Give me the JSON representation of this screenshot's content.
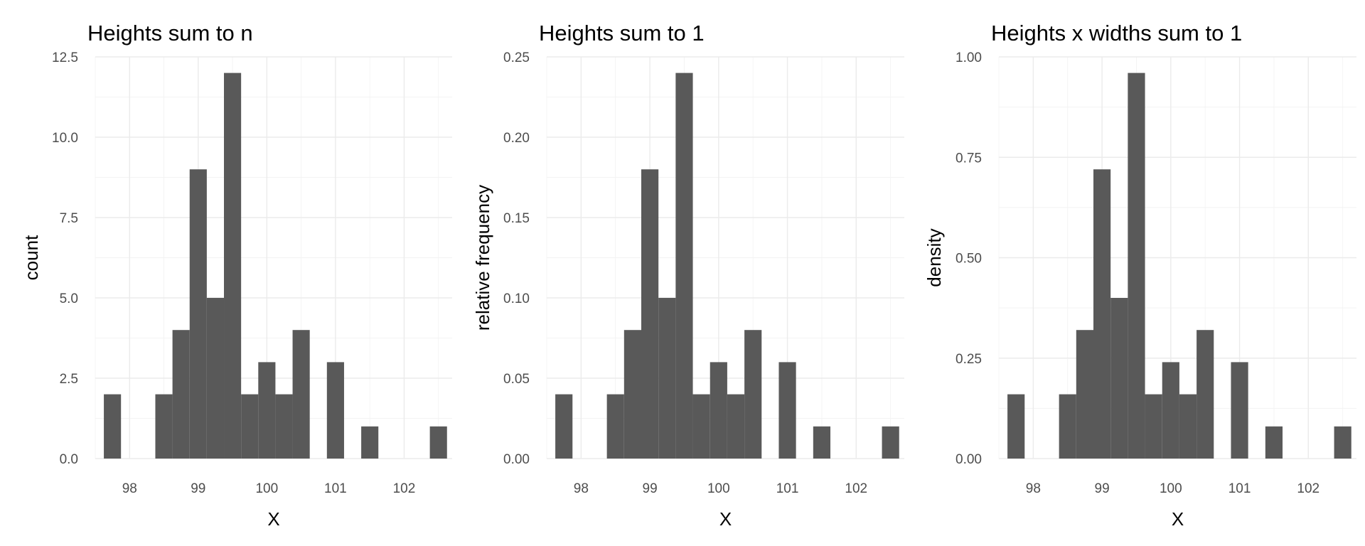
{
  "chart_data": [
    {
      "type": "bar",
      "title": "Heights sum to n",
      "xlabel": "X",
      "ylabel": "count",
      "xlim": [
        97.5,
        102.7
      ],
      "ylim": [
        0,
        12.5
      ],
      "xticks": [
        98,
        99,
        100,
        101,
        102
      ],
      "yticks": [
        0,
        2.5,
        5,
        7.5,
        10,
        12.5
      ],
      "ytick_labels": [
        "0.0",
        "2.5",
        "5.0",
        "7.5",
        "10.0",
        "12.5"
      ],
      "bin_width": 0.25,
      "bins": [
        97.75,
        98.0,
        98.25,
        98.5,
        98.75,
        99.0,
        99.25,
        99.5,
        99.75,
        100.0,
        100.25,
        100.5,
        100.75,
        101.0,
        101.25,
        101.5,
        101.75,
        102.0,
        102.25,
        102.5
      ],
      "values": [
        2,
        0,
        0,
        2,
        4,
        9,
        5,
        12,
        2,
        3,
        2,
        4,
        0,
        3,
        0,
        1,
        0,
        0,
        0,
        1
      ],
      "grid": true
    },
    {
      "type": "bar",
      "title": "Heights sum to 1",
      "xlabel": "X",
      "ylabel": "relative frequency",
      "xlim": [
        97.5,
        102.7
      ],
      "ylim": [
        0,
        0.25
      ],
      "xticks": [
        98,
        99,
        100,
        101,
        102
      ],
      "yticks": [
        0,
        0.05,
        0.1,
        0.15,
        0.2,
        0.25
      ],
      "ytick_labels": [
        "0.00",
        "0.05",
        "0.10",
        "0.15",
        "0.20",
        "0.25"
      ],
      "bin_width": 0.25,
      "bins": [
        97.75,
        98.0,
        98.25,
        98.5,
        98.75,
        99.0,
        99.25,
        99.5,
        99.75,
        100.0,
        100.25,
        100.5,
        100.75,
        101.0,
        101.25,
        101.5,
        101.75,
        102.0,
        102.25,
        102.5
      ],
      "values": [
        0.04,
        0,
        0,
        0.04,
        0.08,
        0.18,
        0.1,
        0.24,
        0.04,
        0.06,
        0.04,
        0.08,
        0,
        0.06,
        0,
        0.02,
        0,
        0,
        0,
        0.02
      ],
      "grid": true
    },
    {
      "type": "bar",
      "title": "Heights x widths sum to 1",
      "xlabel": "X",
      "ylabel": "density",
      "xlim": [
        97.5,
        102.7
      ],
      "ylim": [
        0,
        1.0
      ],
      "xticks": [
        98,
        99,
        100,
        101,
        102
      ],
      "yticks": [
        0,
        0.25,
        0.5,
        0.75,
        1.0
      ],
      "ytick_labels": [
        "0.00",
        "0.25",
        "0.50",
        "0.75",
        "1.00"
      ],
      "bin_width": 0.25,
      "bins": [
        97.75,
        98.0,
        98.25,
        98.5,
        98.75,
        99.0,
        99.25,
        99.5,
        99.75,
        100.0,
        100.25,
        100.5,
        100.75,
        101.0,
        101.25,
        101.5,
        101.75,
        102.0,
        102.25,
        102.5
      ],
      "values": [
        0.16,
        0,
        0,
        0.16,
        0.32,
        0.72,
        0.4,
        0.96,
        0.16,
        0.24,
        0.16,
        0.32,
        0,
        0.24,
        0,
        0.08,
        0,
        0,
        0,
        0.08
      ],
      "grid": true
    }
  ]
}
